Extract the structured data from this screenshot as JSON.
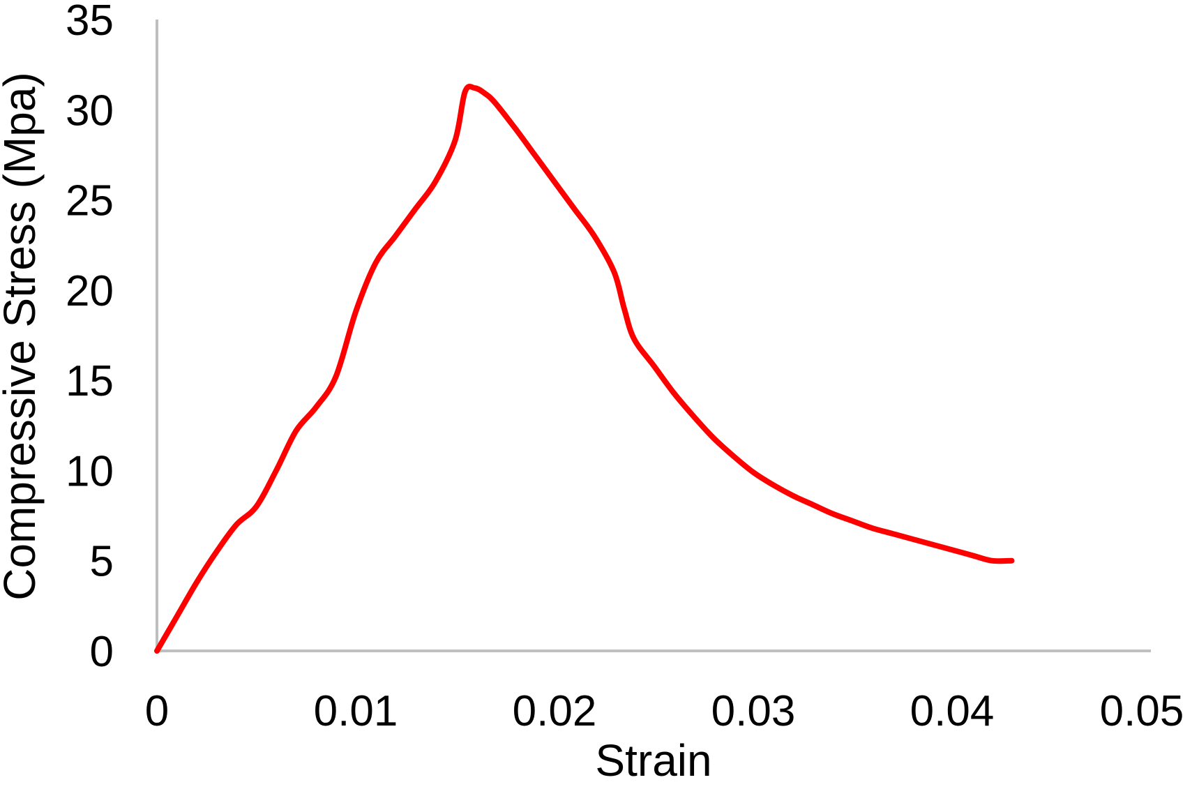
{
  "chart_data": {
    "type": "line",
    "title": "",
    "xlabel": "Strain",
    "ylabel": "Compressive Stress (Mpa)",
    "xlim": [
      0,
      0.05
    ],
    "ylim": [
      0,
      35
    ],
    "x_ticks": [
      "0",
      "0.01",
      "0.02",
      "0.03",
      "0.04",
      "0.05"
    ],
    "x_tick_values": [
      0,
      0.01,
      0.02,
      0.03,
      0.04,
      0.05
    ],
    "y_ticks": [
      "0",
      "5",
      "10",
      "15",
      "20",
      "25",
      "30",
      "35"
    ],
    "y_tick_values": [
      0,
      5,
      10,
      15,
      20,
      25,
      30,
      35
    ],
    "grid": false,
    "legend": "none",
    "colors": {
      "series": "#ff0000",
      "axis": "#bfbfbf"
    },
    "series": [
      {
        "x": [
          0,
          0.001,
          0.002,
          0.003,
          0.004,
          0.005,
          0.006,
          0.007,
          0.008,
          0.009,
          0.01,
          0.011,
          0.012,
          0.013,
          0.014,
          0.015,
          0.0155,
          0.016,
          0.0165,
          0.017,
          0.018,
          0.019,
          0.02,
          0.021,
          0.022,
          0.023,
          0.0235,
          0.024,
          0.025,
          0.026,
          0.027,
          0.028,
          0.029,
          0.03,
          0.031,
          0.032,
          0.033,
          0.034,
          0.035,
          0.036,
          0.037,
          0.038,
          0.039,
          0.04,
          0.041,
          0.042,
          0.043
        ],
        "y": [
          0,
          1.9,
          3.8,
          5.5,
          7.0,
          8.0,
          10.0,
          12.2,
          13.5,
          15.2,
          18.8,
          21.5,
          23.0,
          24.5,
          26.0,
          28.3,
          31.0,
          31.2,
          30.9,
          30.4,
          29.0,
          27.5,
          26.0,
          24.5,
          23.0,
          21.0,
          19.0,
          17.3,
          15.8,
          14.3,
          13.0,
          11.8,
          10.8,
          9.9,
          9.2,
          8.6,
          8.1,
          7.6,
          7.2,
          6.8,
          6.5,
          6.2,
          5.9,
          5.6,
          5.3,
          5.0,
          5.0
        ]
      }
    ]
  }
}
